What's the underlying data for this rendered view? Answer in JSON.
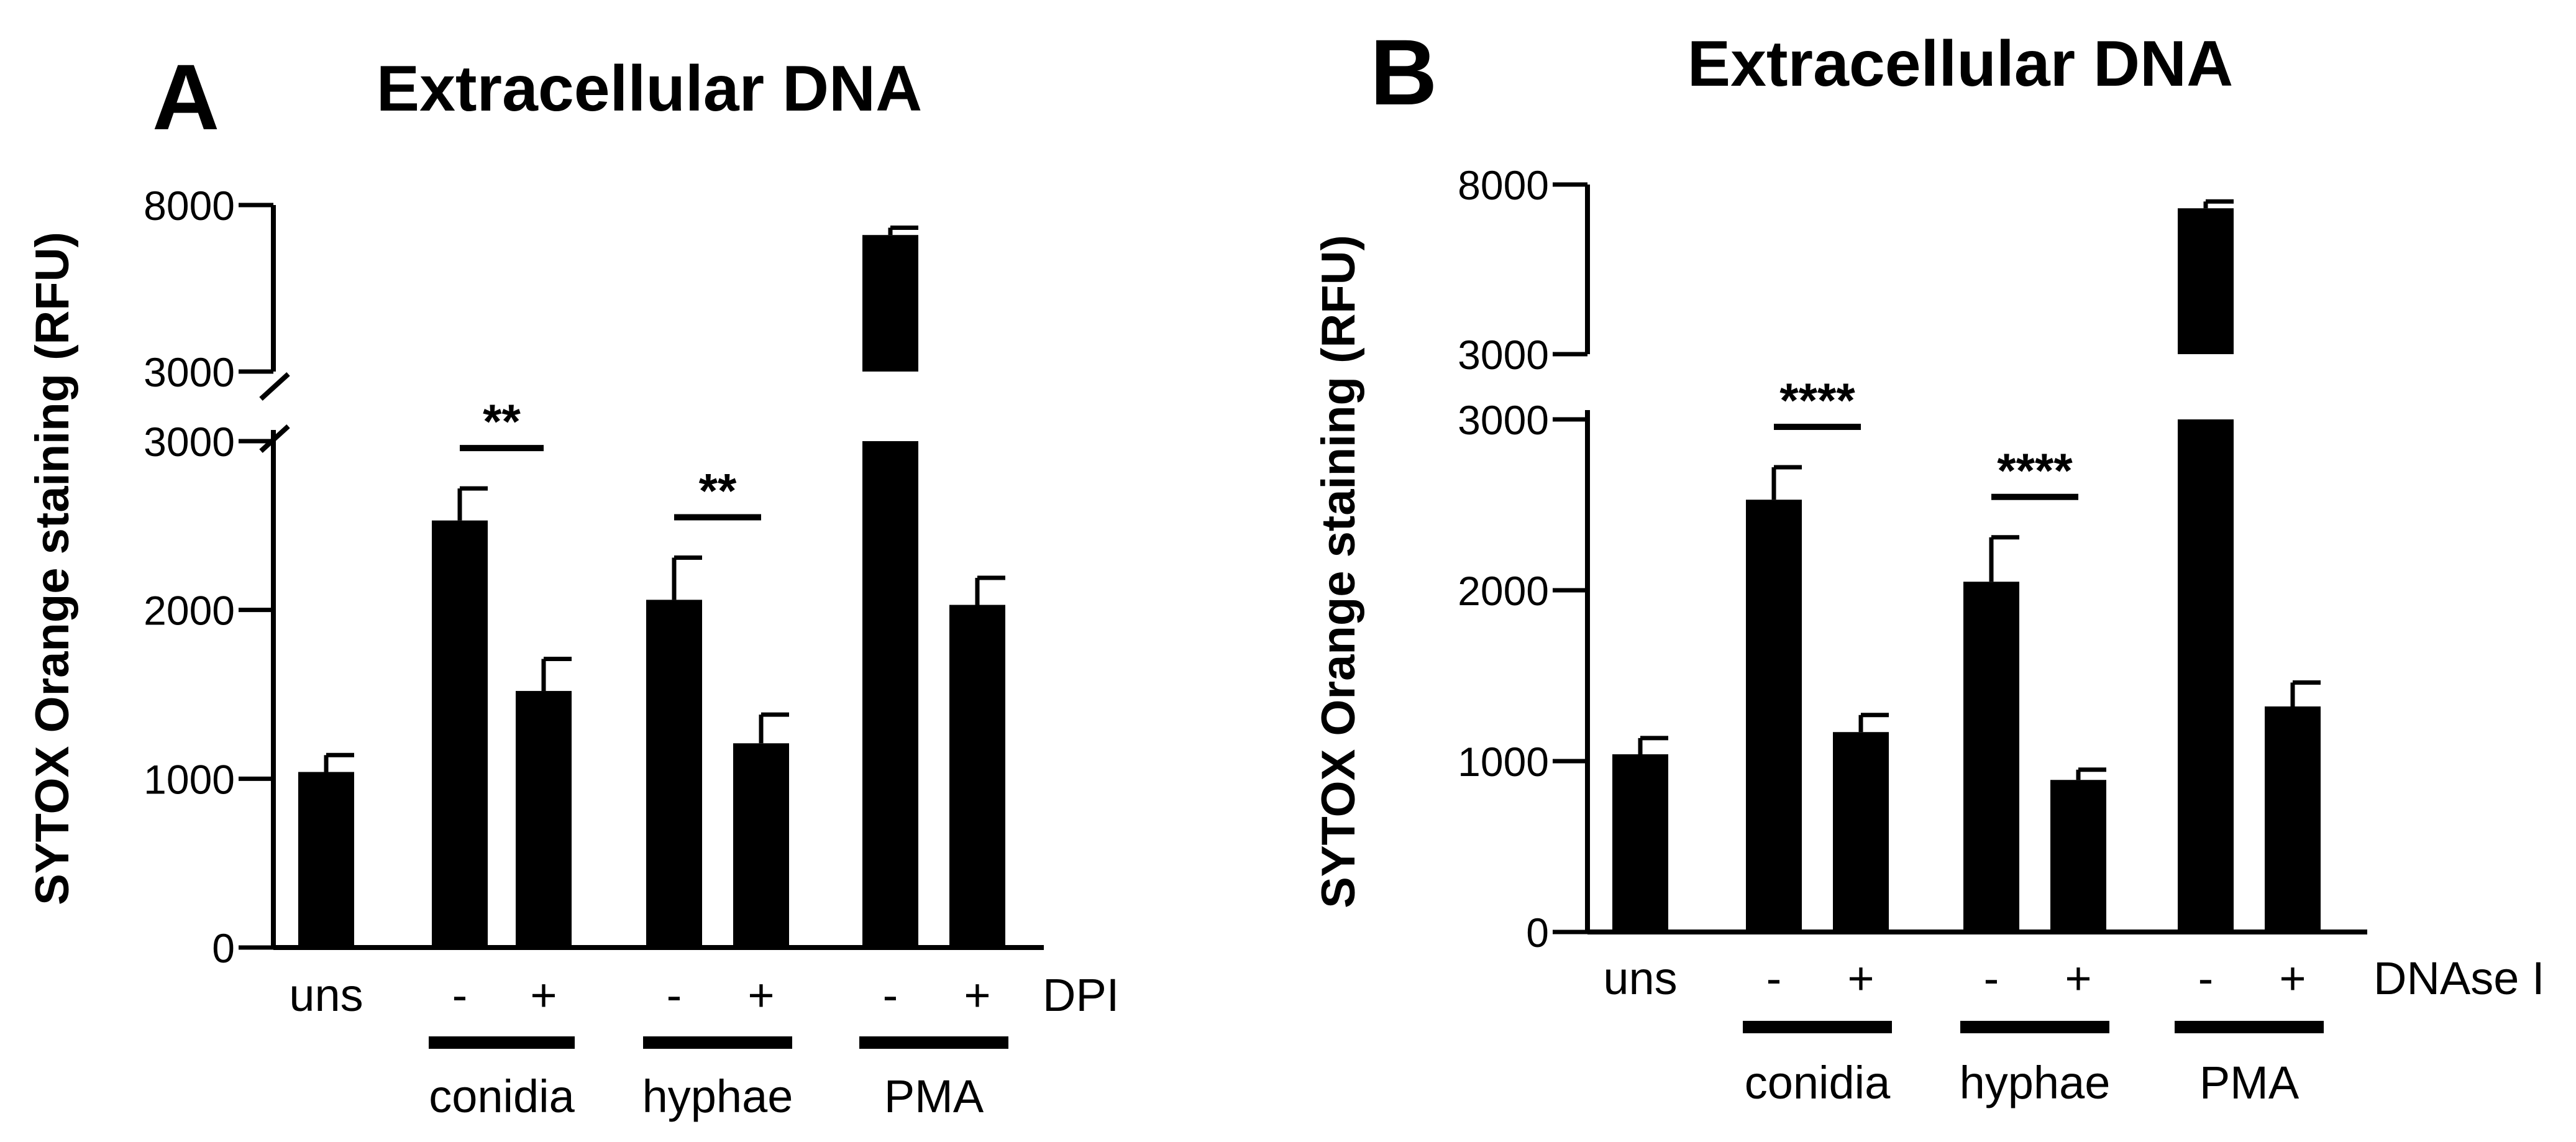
{
  "chart_data": [
    {
      "panel": "A",
      "type": "bar",
      "title": "Extracellular DNA",
      "ylabel": "SYTOX Orange staining (RFU)",
      "ylim_lower": [
        0,
        3000
      ],
      "ylim_upper": [
        3000,
        8000
      ],
      "yticks_lower": [
        "0",
        "1000",
        "2000",
        "3000"
      ],
      "yticks_upper": [
        "3000",
        "8000"
      ],
      "treatment_label": "DPI",
      "x_labels": [
        "uns",
        "-",
        "+",
        "-",
        "+",
        "-",
        "+"
      ],
      "group_labels": [
        "conidia",
        "hyphae",
        "PMA"
      ],
      "values": [
        1040,
        2530,
        1520,
        2060,
        1210,
        7100,
        2030
      ],
      "errors": [
        100,
        190,
        190,
        250,
        170,
        220,
        160
      ],
      "significance": [
        {
          "label": "**",
          "between": [
            1,
            2
          ]
        },
        {
          "label": "**",
          "between": [
            3,
            4
          ]
        }
      ]
    },
    {
      "panel": "B",
      "type": "bar",
      "title": "Extracellular DNA",
      "ylabel": "SYTOX Orange staining (RFU)",
      "ylim_lower": [
        0,
        3000
      ],
      "ylim_upper": [
        3000,
        8000
      ],
      "yticks_lower": [
        "0",
        "1000",
        "2000",
        "3000"
      ],
      "yticks_upper": [
        "3000",
        "8000"
      ],
      "treatment_label": "DNAse I",
      "x_labels": [
        "uns",
        "-",
        "+",
        "-",
        "+",
        "-",
        "+"
      ],
      "group_labels": [
        "conidia",
        "hyphae",
        "PMA"
      ],
      "values": [
        1040,
        2530,
        1170,
        2050,
        890,
        7300,
        1320
      ],
      "errors": [
        95,
        190,
        100,
        260,
        60,
        200,
        140
      ],
      "significance": [
        {
          "label": "****",
          "between": [
            1,
            2
          ]
        },
        {
          "label": "****",
          "between": [
            3,
            4
          ]
        }
      ]
    }
  ]
}
